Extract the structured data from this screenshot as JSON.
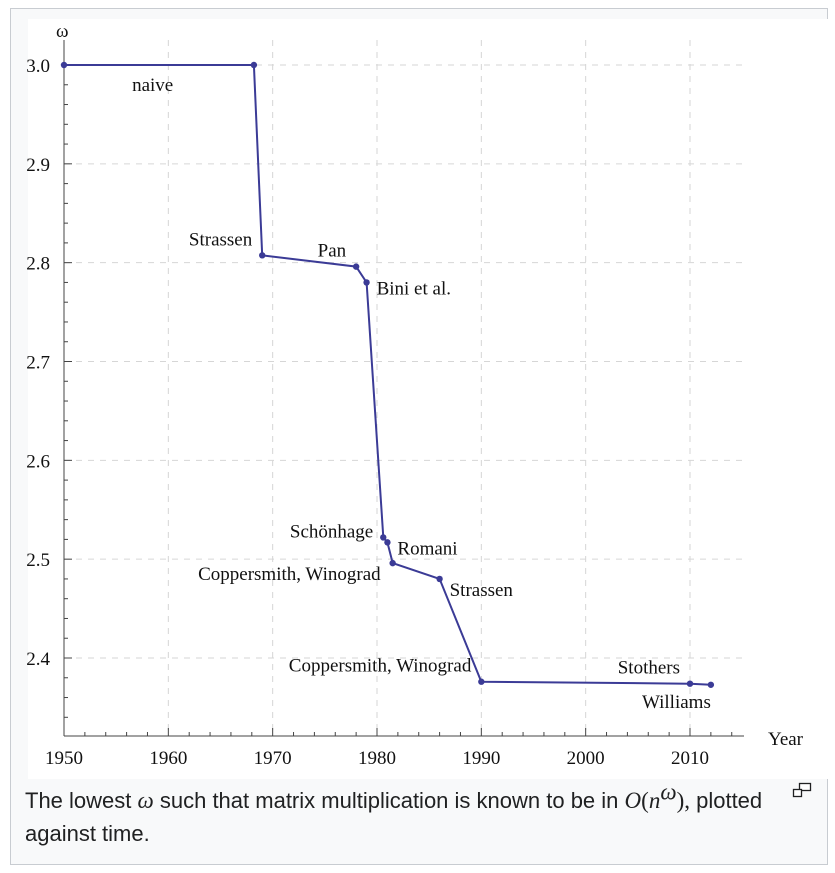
{
  "chart_data": {
    "type": "line",
    "ylabel": "ω",
    "xlabel": "Year",
    "xlim": [
      1950,
      2015
    ],
    "ylim": [
      2.32,
      3.0
    ],
    "xticks": [
      1950,
      1960,
      1970,
      1980,
      1990,
      2000,
      2010
    ],
    "yticks": [
      2.4,
      2.5,
      2.6,
      2.7,
      2.8,
      2.9,
      3.0
    ],
    "grid": true,
    "points": [
      {
        "x": 1950,
        "y": 3.0,
        "label": "",
        "label_pos": ""
      },
      {
        "x": 1968.2,
        "y": 3.0,
        "label": "",
        "label_pos": ""
      },
      {
        "x": 1969,
        "y": 2.8074,
        "label": "Strassen",
        "label_pos": "upper-left"
      },
      {
        "x": 1978,
        "y": 2.796,
        "label": "Pan",
        "label_pos": "upper-left"
      },
      {
        "x": 1979,
        "y": 2.78,
        "label": "Bini et al.",
        "label_pos": "right"
      },
      {
        "x": 1980.6,
        "y": 2.522,
        "label": "Schönhage",
        "label_pos": "left"
      },
      {
        "x": 1981,
        "y": 2.517,
        "label": "Romani",
        "label_pos": "right"
      },
      {
        "x": 1981.5,
        "y": 2.496,
        "label": "Coppersmith, Winograd",
        "label_pos": "lower-left"
      },
      {
        "x": 1986,
        "y": 2.48,
        "label": "Strassen",
        "label_pos": "lower-right"
      },
      {
        "x": 1990,
        "y": 2.376,
        "label": "Coppersmith, Winograd",
        "label_pos": "upper-left"
      },
      {
        "x": 2010,
        "y": 2.374,
        "label": "Stothers",
        "label_pos": "upper-left"
      },
      {
        "x": 2012,
        "y": 2.3729,
        "label": "Williams",
        "label_pos": "below"
      }
    ],
    "annotations": [
      {
        "text": "naive",
        "x": 1958.5,
        "y": 2.98
      }
    ],
    "line_color": "#3b3b96"
  },
  "caption": {
    "prefix": "The lowest ",
    "symbol": "ω",
    "middle": " such that matrix multiplication is known to be in ",
    "big_o": "O",
    "paren_open": "(",
    "base": "n",
    "exponent": "ω",
    "paren_close": "),",
    "suffix": " plotted against time."
  },
  "magnify_icon": "magnify-clip-icon"
}
